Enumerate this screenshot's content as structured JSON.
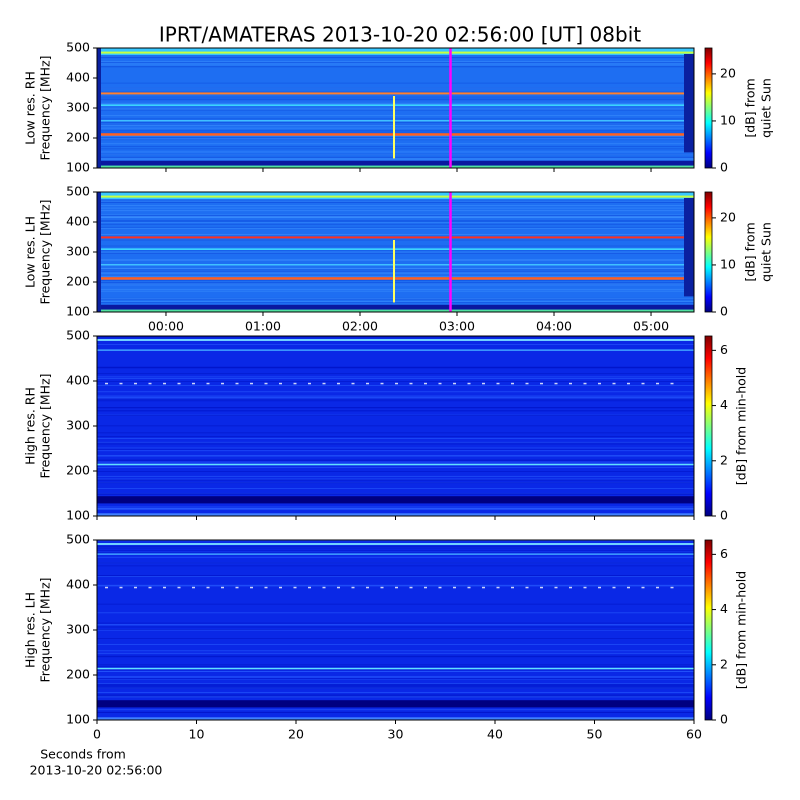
{
  "title": "IPRT/AMATERAS 2013-10-20 02:56:00 [UT]   08bit",
  "chart_data": [
    {
      "type": "heatmap",
      "ylabel": [
        "Low res. RH",
        "Frequency [MHz]"
      ],
      "ylim": [
        100,
        500
      ],
      "yticks": [
        100,
        200,
        300,
        400,
        500
      ],
      "xlim": [
        -0.711,
        5.443
      ],
      "xticks": [
        0,
        1,
        2,
        3,
        4,
        5
      ],
      "xticklabels": false,
      "colormap": "jet",
      "marker_x": 2.933,
      "marker_color": "#ff00ff",
      "colorbar": {
        "label": [
          "[dB] from",
          "quiet Sun"
        ],
        "lim": [
          0,
          25.5
        ],
        "ticks": [
          0,
          10,
          20
        ]
      }
    },
    {
      "type": "heatmap",
      "ylabel": [
        "Low res. LH",
        "Frequency [MHz]"
      ],
      "ylim": [
        100,
        500
      ],
      "yticks": [
        100,
        200,
        300,
        400,
        500
      ],
      "xlim": [
        -0.711,
        5.443
      ],
      "xticklabels": true,
      "xticks": [
        {
          "value": 0,
          "label": "00:00"
        },
        {
          "value": 1,
          "label": "01:00"
        },
        {
          "value": 2,
          "label": "02:00"
        },
        {
          "value": 3,
          "label": "03:00"
        },
        {
          "value": 4,
          "label": "04:00"
        },
        {
          "value": 5,
          "label": "05:00"
        }
      ],
      "colormap": "jet",
      "marker_x": 2.933,
      "marker_color": "#ff00ff",
      "colorbar": {
        "label": [
          "[dB] from",
          "quiet Sun"
        ],
        "lim": [
          0,
          25.5
        ],
        "ticks": [
          0,
          10,
          20
        ]
      }
    },
    {
      "type": "heatmap",
      "ylabel": [
        "High res. RH",
        "Frequency [MHz]"
      ],
      "ylim": [
        100,
        500
      ],
      "yticks": [
        100,
        200,
        300,
        400,
        500
      ],
      "xlim": [
        0,
        60
      ],
      "xticks": [
        0,
        10,
        20,
        30,
        40,
        50,
        60
      ],
      "xticklabels": false,
      "colormap": "jet",
      "colorbar": {
        "label": [
          "[dB] from min-hold"
        ],
        "lim": [
          0,
          6.52
        ],
        "ticks": [
          0,
          2,
          4,
          6
        ]
      }
    },
    {
      "type": "heatmap",
      "ylabel": [
        "High res. LH",
        "Frequency [MHz]"
      ],
      "ylim": [
        100,
        500
      ],
      "yticks": [
        100,
        200,
        300,
        400,
        500
      ],
      "xlim": [
        0,
        60
      ],
      "xticks": [
        0,
        10,
        20,
        30,
        40,
        50,
        60
      ],
      "xticklabels": true,
      "colormap": "jet",
      "xlabel": [
        "Seconds from",
        "2013-10-20 02:56:00"
      ],
      "colorbar": {
        "label": [
          "[dB] from min-hold"
        ],
        "lim": [
          0,
          6.52
        ],
        "ticks": [
          0,
          2,
          4,
          6
        ]
      }
    }
  ]
}
